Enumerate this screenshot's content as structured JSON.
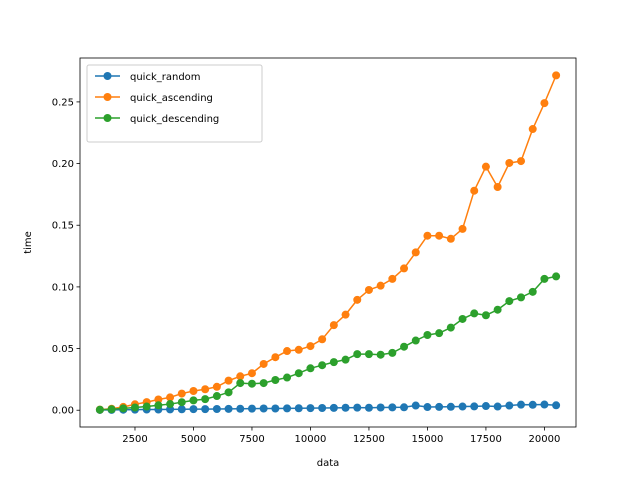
{
  "chart_data": {
    "type": "line",
    "title": "",
    "xlabel": "data",
    "ylabel": "time",
    "xlim": [
      150,
      21350
    ],
    "ylim": [
      -0.0136,
      0.2856
    ],
    "xticks": [
      2500,
      5000,
      7500,
      10000,
      12500,
      15000,
      17500,
      20000
    ],
    "yticks": [
      0.0,
      0.05,
      0.1,
      0.15,
      0.2,
      0.25
    ],
    "xtick_labels": [
      "2500",
      "5000",
      "7500",
      "10000",
      "12500",
      "15000",
      "17500",
      "20000"
    ],
    "ytick_labels": [
      "0.00",
      "0.05",
      "0.10",
      "0.15",
      "0.20",
      "0.25"
    ],
    "grid": false,
    "legend_position": "top-left",
    "x": [
      1000,
      1500,
      2000,
      2500,
      3000,
      3500,
      4000,
      4500,
      5000,
      5500,
      6000,
      6500,
      7000,
      7500,
      8000,
      8500,
      9000,
      9500,
      10000,
      10500,
      11000,
      11500,
      12000,
      12500,
      13000,
      13500,
      14000,
      14500,
      15000,
      15500,
      16000,
      16500,
      17000,
      17500,
      18000,
      18500,
      19000,
      19500,
      20000,
      20500
    ],
    "series": [
      {
        "name": "quick_random",
        "color": "#1f77b4",
        "values": [
          0.0002,
          0.0003,
          0.0004,
          0.0005,
          0.0006,
          0.0006,
          0.0007,
          0.0008,
          0.0009,
          0.0009,
          0.001,
          0.0011,
          0.0012,
          0.0013,
          0.0014,
          0.0014,
          0.0015,
          0.0016,
          0.0017,
          0.0018,
          0.0019,
          0.002,
          0.0021,
          0.002,
          0.0022,
          0.0023,
          0.0024,
          0.0038,
          0.0026,
          0.0027,
          0.0028,
          0.003,
          0.0031,
          0.0034,
          0.003,
          0.0038,
          0.0045,
          0.0044,
          0.0046,
          0.004
        ]
      },
      {
        "name": "quick_ascending",
        "color": "#ff7f0e",
        "values": [
          0.0005,
          0.0012,
          0.0027,
          0.0048,
          0.0066,
          0.0087,
          0.0104,
          0.0135,
          0.0156,
          0.017,
          0.019,
          0.024,
          0.0275,
          0.03,
          0.0375,
          0.043,
          0.048,
          0.049,
          0.052,
          0.0575,
          0.069,
          0.0775,
          0.0895,
          0.0975,
          0.101,
          0.1065,
          0.115,
          0.128,
          0.1415,
          0.1415,
          0.139,
          0.147,
          0.178,
          0.1975,
          0.181,
          0.2005,
          0.202,
          0.228,
          0.249,
          0.2715
        ]
      },
      {
        "name": "quick_descending",
        "color": "#2ca02c",
        "values": [
          0.0004,
          0.0008,
          0.0015,
          0.0022,
          0.003,
          0.004,
          0.005,
          0.0065,
          0.008,
          0.009,
          0.0115,
          0.0145,
          0.022,
          0.0215,
          0.022,
          0.0245,
          0.0265,
          0.03,
          0.034,
          0.0365,
          0.039,
          0.041,
          0.0455,
          0.0455,
          0.045,
          0.0465,
          0.0515,
          0.0565,
          0.061,
          0.0625,
          0.067,
          0.074,
          0.0785,
          0.077,
          0.0815,
          0.0885,
          0.0915,
          0.096,
          0.1065,
          0.1085
        ]
      }
    ]
  }
}
